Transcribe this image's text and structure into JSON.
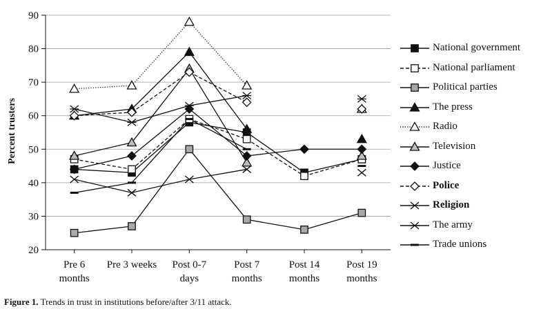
{
  "chart_data": {
    "type": "line",
    "ylabel": "Percent trusters",
    "xlabel": "",
    "ylim": [
      20,
      90
    ],
    "yticks": [
      20,
      30,
      40,
      50,
      60,
      70,
      80,
      90
    ],
    "categories": [
      [
        "Pre 6",
        "months"
      ],
      [
        "Pre 3 weeks"
      ],
      [
        "Post 0-7",
        "days"
      ],
      [
        "Post 7",
        "months"
      ],
      [
        "Post 14",
        "months"
      ],
      [
        "Post 19",
        "months"
      ]
    ],
    "grid": "horizontal",
    "legend_position": "right",
    "series": [
      {
        "name": "National government",
        "marker": "square-filled",
        "dash": "solid",
        "bold": false,
        "values": [
          44,
          43,
          58,
          55,
          43,
          47
        ]
      },
      {
        "name": "National parliament",
        "marker": "square-open",
        "dash": "dashed",
        "bold": false,
        "values": [
          47,
          44,
          59,
          53,
          42,
          47
        ]
      },
      {
        "name": "Political parties",
        "marker": "square-gray",
        "dash": "solid",
        "bold": false,
        "values": [
          25,
          27,
          50,
          29,
          26,
          31
        ]
      },
      {
        "name": "The press",
        "marker": "triangle-filled",
        "dash": "solid",
        "bold": false,
        "values": [
          60,
          62,
          79,
          56,
          null,
          53
        ]
      },
      {
        "name": "Radio",
        "marker": "triangle-open",
        "dash": "dotted",
        "bold": false,
        "values": [
          68,
          69,
          88,
          69,
          null,
          62
        ]
      },
      {
        "name": "Television",
        "marker": "triangle-gray",
        "dash": "solid",
        "bold": false,
        "values": [
          48,
          52,
          74,
          46,
          null,
          48
        ]
      },
      {
        "name": "Justice",
        "marker": "diamond-filled",
        "dash": "solid",
        "bold": false,
        "values": [
          44,
          48,
          62,
          48,
          50,
          50
        ]
      },
      {
        "name": "Police",
        "marker": "diamond-open",
        "dash": "dashed",
        "bold": true,
        "values": [
          60,
          61,
          73,
          64,
          null,
          62
        ]
      },
      {
        "name": "Religion",
        "marker": "x",
        "dash": "solid",
        "bold": true,
        "values": [
          41,
          37,
          41,
          44,
          null,
          43
        ]
      },
      {
        "name": "The army",
        "marker": "asterisk",
        "dash": "solid",
        "bold": false,
        "values": [
          62,
          58,
          63,
          66,
          null,
          65
        ]
      },
      {
        "name": "Trade unions",
        "marker": "dash",
        "dash": "solid",
        "bold": false,
        "values": [
          37,
          40,
          59,
          50,
          null,
          45
        ]
      }
    ]
  },
  "caption": {
    "label": "Figure 1.",
    "text": "Trends in trust in institutions before/after 3/11 attack."
  }
}
